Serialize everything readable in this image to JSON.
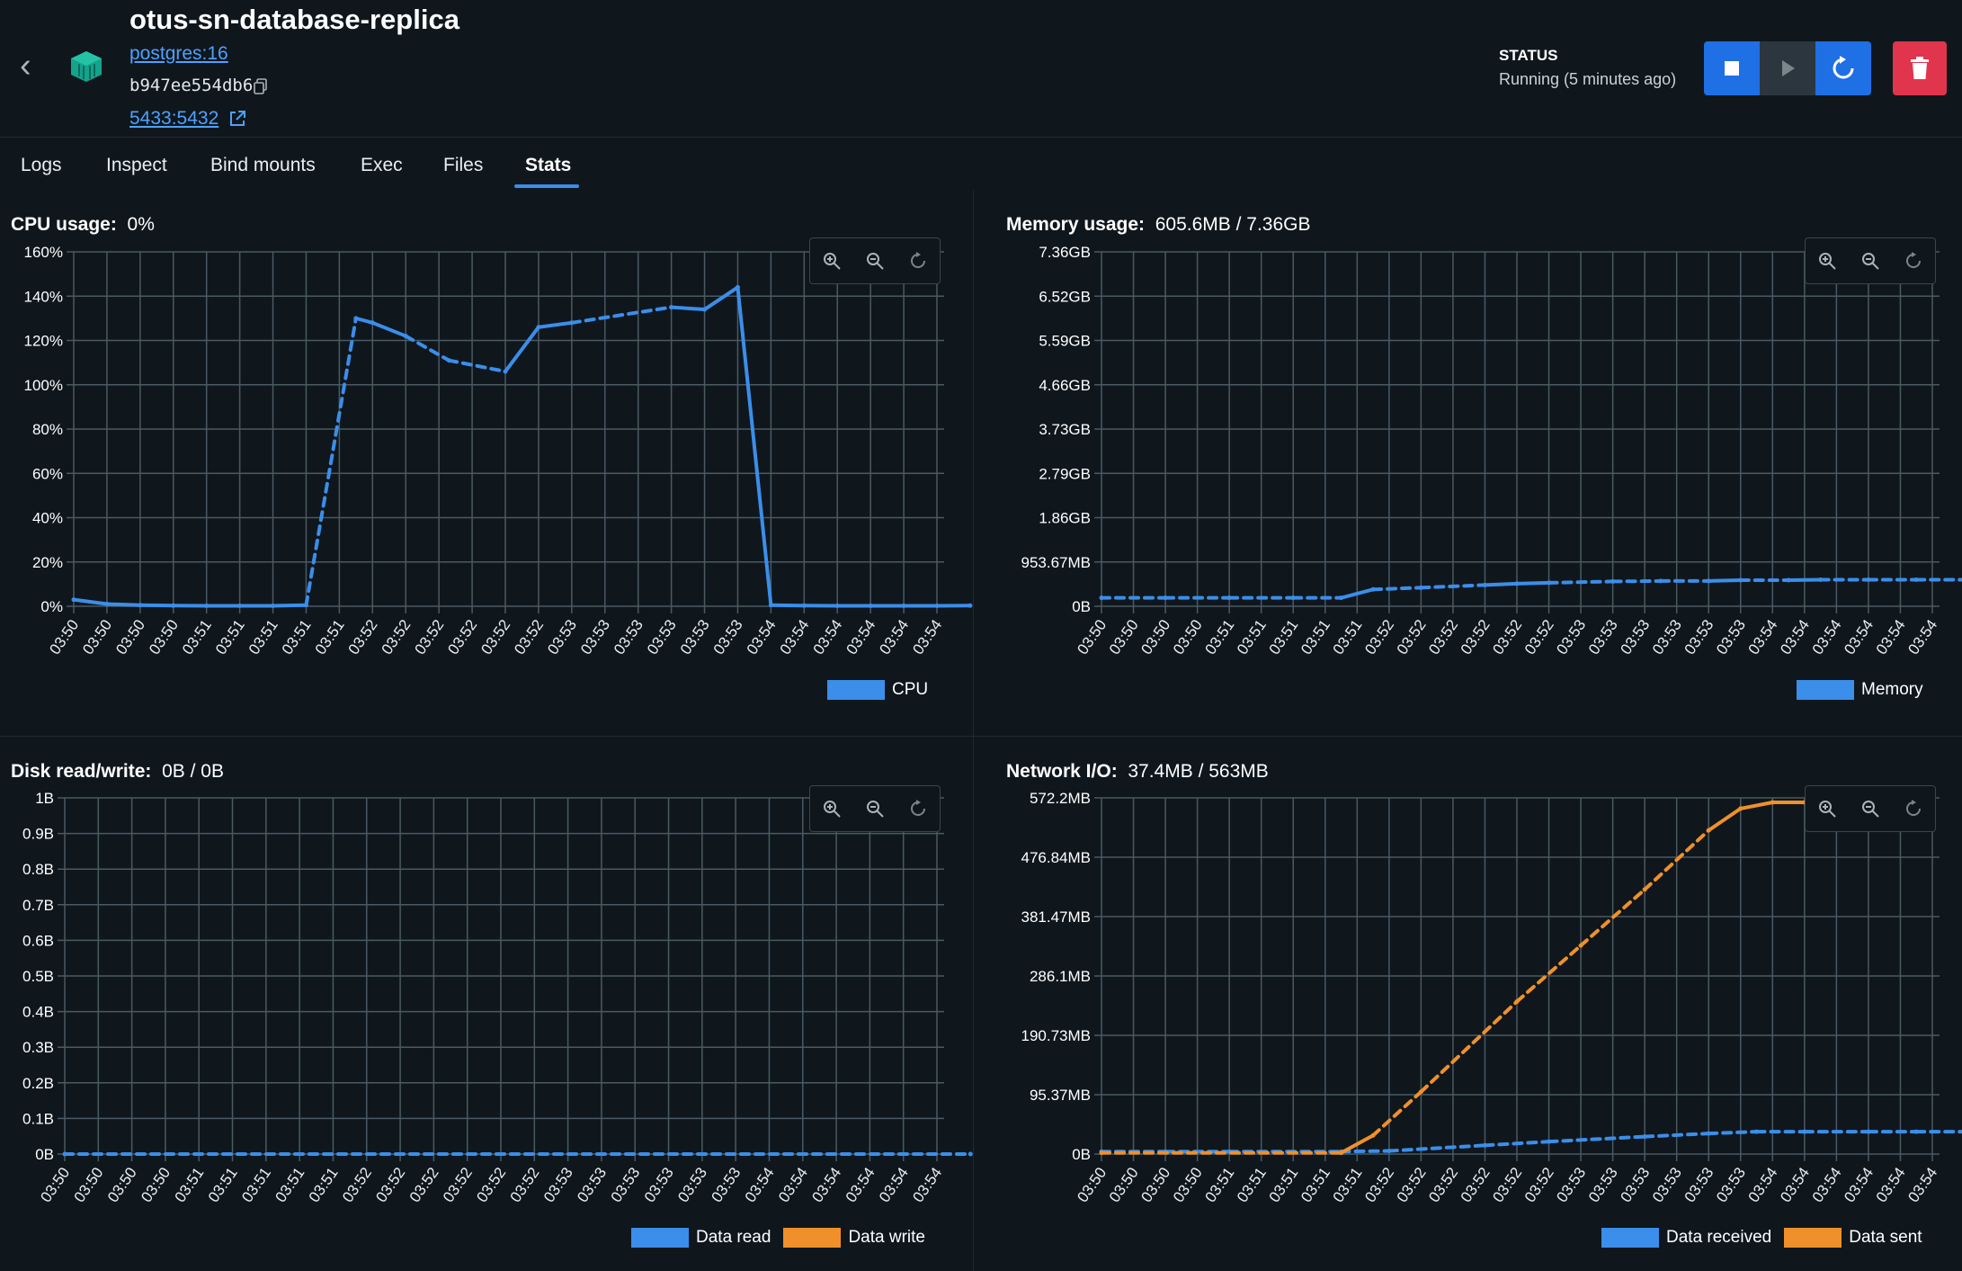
{
  "header": {
    "title": "otus-sn-database-replica",
    "image": "postgres:16",
    "container_id": "b947ee554db6",
    "port": "5433:5432",
    "status_label": "STATUS",
    "status_value": "Running (5 minutes ago)"
  },
  "tabs": [
    "Logs",
    "Inspect",
    "Bind mounts",
    "Exec",
    "Files",
    "Stats"
  ],
  "active_tab": "Stats",
  "colors": {
    "blue": "#3b8eea",
    "orange": "#f0902a",
    "grid": "#4a5963"
  },
  "x_ticks": [
    "03:50",
    "03:50",
    "03:50",
    "03:50",
    "03:51",
    "03:51",
    "03:51",
    "03:51",
    "03:51",
    "03:52",
    "03:52",
    "03:52",
    "03:52",
    "03:52",
    "03:52",
    "03:53",
    "03:53",
    "03:53",
    "03:53",
    "03:53",
    "03:53",
    "03:54",
    "03:54",
    "03:54",
    "03:54",
    "03:54",
    "03:54"
  ],
  "panels": {
    "cpu": {
      "label": "CPU usage:",
      "value": "0%"
    },
    "memory": {
      "label": "Memory usage:",
      "value": "605.6MB / 7.36GB"
    },
    "disk": {
      "label": "Disk read/write:",
      "value": "0B / 0B"
    },
    "network": {
      "label": "Network I/O:",
      "value": "37.4MB / 563MB"
    }
  },
  "chart_data": [
    {
      "type": "line",
      "id": "cpu",
      "y_tick_labels": [
        "160%",
        "140%",
        "120%",
        "100%",
        "80%",
        "60%",
        "40%",
        "20%",
        "0%"
      ],
      "ylim": [
        0,
        160
      ],
      "series": [
        {
          "name": "CPU",
          "color": "#3b8eea",
          "points": [
            [
              0,
              3
            ],
            [
              1,
              1
            ],
            [
              2,
              0.5
            ],
            [
              3,
              0.3
            ],
            [
              4,
              0.2
            ],
            [
              5,
              0.2
            ],
            [
              6,
              0.2
            ],
            [
              7,
              0.5
            ],
            [
              8.5,
              130
            ],
            [
              9,
              128
            ],
            [
              10,
              122
            ],
            [
              11.3,
              111
            ],
            [
              13,
              106
            ],
            [
              14,
              126
            ],
            [
              15,
              128
            ],
            [
              18,
              135
            ],
            [
              19,
              134
            ],
            [
              20,
              144
            ],
            [
              21,
              0.5
            ],
            [
              22,
              0.3
            ],
            [
              23,
              0.2
            ],
            [
              24,
              0.2
            ],
            [
              25,
              0.2
            ],
            [
              26,
              0.2
            ],
            [
              27,
              0.3
            ]
          ]
        }
      ]
    },
    {
      "type": "line",
      "id": "memory",
      "y_tick_labels": [
        "7.36GB",
        "6.52GB",
        "5.59GB",
        "4.66GB",
        "3.73GB",
        "2.79GB",
        "1.86GB",
        "953.67MB",
        "0B"
      ],
      "ylim": [
        0,
        8
      ],
      "series": [
        {
          "name": "Memory",
          "color": "#3b8eea",
          "points": [
            [
              0,
              0.19
            ],
            [
              2,
              0.19
            ],
            [
              4,
              0.19
            ],
            [
              6,
              0.19
            ],
            [
              7.5,
              0.19
            ],
            [
              8.5,
              0.38
            ],
            [
              10,
              0.42
            ],
            [
              12,
              0.48
            ],
            [
              13,
              0.51
            ],
            [
              14,
              0.53
            ],
            [
              16,
              0.56
            ],
            [
              17.5,
              0.57
            ],
            [
              19,
              0.57
            ],
            [
              20,
              0.59
            ],
            [
              21.5,
              0.59
            ],
            [
              22.5,
              0.6
            ],
            [
              24,
              0.6
            ],
            [
              25.5,
              0.6
            ],
            [
              27,
              0.6
            ]
          ]
        }
      ]
    },
    {
      "type": "line",
      "id": "disk",
      "y_tick_labels": [
        "1B",
        "0.9B",
        "0.8B",
        "0.7B",
        "0.6B",
        "0.5B",
        "0.4B",
        "0.3B",
        "0.2B",
        "0.1B",
        "0B"
      ],
      "ylim": [
        0,
        1
      ],
      "series": [
        {
          "name": "Data read",
          "color": "#3b8eea",
          "points": [
            [
              0,
              0
            ],
            [
              27,
              0
            ]
          ]
        },
        {
          "name": "Data write",
          "color": "#f0902a",
          "points": []
        }
      ]
    },
    {
      "type": "line",
      "id": "network",
      "y_tick_labels": [
        "572.2MB",
        "476.84MB",
        "381.47MB",
        "286.1MB",
        "190.73MB",
        "95.37MB",
        "0B"
      ],
      "ylim": [
        0,
        572.2
      ],
      "series": [
        {
          "name": "Data received",
          "color": "#3b8eea",
          "points": [
            [
              0,
              4
            ],
            [
              2,
              4
            ],
            [
              4,
              4
            ],
            [
              7.5,
              4
            ],
            [
              9,
              5
            ],
            [
              12,
              14
            ],
            [
              14,
              20
            ],
            [
              17,
              28
            ],
            [
              19,
              33
            ],
            [
              20.5,
              36
            ],
            [
              22,
              36
            ],
            [
              24,
              36
            ],
            [
              25.5,
              36
            ],
            [
              27,
              36
            ]
          ]
        },
        {
          "name": "Data sent",
          "color": "#f0902a",
          "points": [
            [
              0,
              2
            ],
            [
              7.5,
              2
            ],
            [
              8.5,
              30
            ],
            [
              10,
              100
            ],
            [
              13,
              245
            ],
            [
              15,
              335
            ],
            [
              17,
              425
            ],
            [
              19,
              520
            ],
            [
              20,
              555
            ],
            [
              21,
              565
            ],
            [
              22,
              565
            ],
            [
              23,
              565
            ],
            [
              24,
              565
            ]
          ]
        }
      ]
    }
  ]
}
